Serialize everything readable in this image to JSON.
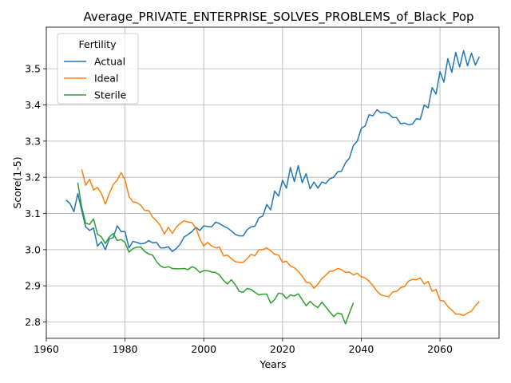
{
  "chart_data": {
    "type": "line",
    "title": "Average_PRIVATE_ENTERPRISE_SOLVES_PROBLEMS_of_Black_Pop",
    "xlabel": "Years",
    "ylabel": "Score(1-5)",
    "xlim": [
      1960,
      2075
    ],
    "ylim": [
      2.755,
      3.615
    ],
    "xticks": [
      1960,
      1980,
      2000,
      2020,
      2040,
      2060
    ],
    "yticks": [
      2.8,
      2.9,
      3.0,
      3.1,
      3.2,
      3.3,
      3.4,
      3.5
    ],
    "grid": true,
    "legend": {
      "title": "Fertility",
      "placement": "top-left"
    },
    "series": [
      {
        "name": "Actual",
        "color": "#1f77b4",
        "points": [
          [
            1965,
            3.137
          ],
          [
            1966,
            3.128
          ],
          [
            1967,
            3.105
          ],
          [
            1968,
            3.155
          ],
          [
            1969,
            3.108
          ],
          [
            1970,
            3.063
          ],
          [
            1971,
            3.053
          ],
          [
            1972,
            3.06
          ],
          [
            1973,
            3.01
          ],
          [
            1974,
            3.022
          ],
          [
            1975,
            3.0
          ],
          [
            1976,
            3.03
          ],
          [
            1977,
            3.033
          ],
          [
            1978,
            3.066
          ],
          [
            1979,
            3.05
          ],
          [
            1980,
            3.05
          ],
          [
            1981,
            3.005
          ],
          [
            1982,
            3.023
          ],
          [
            1983,
            3.02
          ],
          [
            1984,
            3.016
          ],
          [
            1985,
            3.018
          ],
          [
            1986,
            3.025
          ],
          [
            1987,
            3.019
          ],
          [
            1988,
            3.02
          ],
          [
            1989,
            3.005
          ],
          [
            1990,
            3.005
          ],
          [
            1991,
            3.008
          ],
          [
            1992,
            2.995
          ],
          [
            1993,
            3.003
          ],
          [
            1994,
            3.015
          ],
          [
            1995,
            3.035
          ],
          [
            1996,
            3.042
          ],
          [
            1997,
            3.05
          ],
          [
            1998,
            3.062
          ],
          [
            1999,
            3.053
          ],
          [
            2000,
            3.066
          ],
          [
            2001,
            3.064
          ],
          [
            2002,
            3.063
          ],
          [
            2003,
            3.076
          ],
          [
            2004,
            3.072
          ],
          [
            2005,
            3.065
          ],
          [
            2006,
            3.06
          ],
          [
            2007,
            3.052
          ],
          [
            2008,
            3.042
          ],
          [
            2009,
            3.038
          ],
          [
            2010,
            3.038
          ],
          [
            2011,
            3.055
          ],
          [
            2012,
            3.063
          ],
          [
            2013,
            3.065
          ],
          [
            2014,
            3.088
          ],
          [
            2015,
            3.093
          ],
          [
            2016,
            3.125
          ],
          [
            2017,
            3.11
          ],
          [
            2018,
            3.162
          ],
          [
            2019,
            3.148
          ],
          [
            2020,
            3.192
          ],
          [
            2021,
            3.17
          ],
          [
            2022,
            3.227
          ],
          [
            2023,
            3.188
          ],
          [
            2024,
            3.232
          ],
          [
            2025,
            3.185
          ],
          [
            2026,
            3.21
          ],
          [
            2027,
            3.168
          ],
          [
            2028,
            3.187
          ],
          [
            2029,
            3.17
          ],
          [
            2030,
            3.187
          ],
          [
            2031,
            3.183
          ],
          [
            2032,
            3.196
          ],
          [
            2033,
            3.2
          ],
          [
            2034,
            3.215
          ],
          [
            2035,
            3.217
          ],
          [
            2036,
            3.24
          ],
          [
            2037,
            3.253
          ],
          [
            2038,
            3.288
          ],
          [
            2039,
            3.3
          ],
          [
            2040,
            3.335
          ],
          [
            2041,
            3.342
          ],
          [
            2042,
            3.373
          ],
          [
            2043,
            3.37
          ],
          [
            2044,
            3.387
          ],
          [
            2045,
            3.378
          ],
          [
            2046,
            3.38
          ],
          [
            2047,
            3.375
          ],
          [
            2048,
            3.365
          ],
          [
            2049,
            3.365
          ],
          [
            2050,
            3.348
          ],
          [
            2051,
            3.35
          ],
          [
            2052,
            3.345
          ],
          [
            2053,
            3.347
          ],
          [
            2054,
            3.362
          ],
          [
            2055,
            3.36
          ],
          [
            2056,
            3.4
          ],
          [
            2057,
            3.392
          ],
          [
            2058,
            3.448
          ],
          [
            2059,
            3.43
          ],
          [
            2060,
            3.492
          ],
          [
            2061,
            3.463
          ],
          [
            2062,
            3.528
          ],
          [
            2063,
            3.49
          ],
          [
            2064,
            3.545
          ],
          [
            2065,
            3.505
          ],
          [
            2066,
            3.55
          ],
          [
            2067,
            3.508
          ],
          [
            2068,
            3.543
          ],
          [
            2069,
            3.51
          ],
          [
            2070,
            3.533
          ]
        ]
      },
      {
        "name": "Ideal",
        "color": "#ff7f0e",
        "points": [
          [
            1969,
            3.222
          ],
          [
            1970,
            3.178
          ],
          [
            1971,
            3.195
          ],
          [
            1972,
            3.165
          ],
          [
            1973,
            3.172
          ],
          [
            1974,
            3.155
          ],
          [
            1975,
            3.126
          ],
          [
            1976,
            3.155
          ],
          [
            1977,
            3.18
          ],
          [
            1978,
            3.192
          ],
          [
            1979,
            3.213
          ],
          [
            1980,
            3.193
          ],
          [
            1981,
            3.147
          ],
          [
            1982,
            3.132
          ],
          [
            1983,
            3.13
          ],
          [
            1984,
            3.123
          ],
          [
            1985,
            3.108
          ],
          [
            1986,
            3.108
          ],
          [
            1987,
            3.09
          ],
          [
            1988,
            3.08
          ],
          [
            1989,
            3.066
          ],
          [
            1990,
            3.043
          ],
          [
            1991,
            3.062
          ],
          [
            1992,
            3.045
          ],
          [
            1993,
            3.062
          ],
          [
            1994,
            3.072
          ],
          [
            1995,
            3.08
          ],
          [
            1996,
            3.076
          ],
          [
            1997,
            3.075
          ],
          [
            1998,
            3.06
          ],
          [
            1999,
            3.03
          ],
          [
            2000,
            3.01
          ],
          [
            2001,
            3.02
          ],
          [
            2002,
            3.01
          ],
          [
            2003,
            3.005
          ],
          [
            2004,
            3.007
          ],
          [
            2005,
            2.983
          ],
          [
            2006,
            2.985
          ],
          [
            2007,
            2.975
          ],
          [
            2008,
            2.967
          ],
          [
            2009,
            2.965
          ],
          [
            2010,
            2.965
          ],
          [
            2011,
            2.975
          ],
          [
            2012,
            2.987
          ],
          [
            2013,
            2.983
          ],
          [
            2014,
            3.0
          ],
          [
            2015,
            3.0
          ],
          [
            2016,
            3.005
          ],
          [
            2017,
            2.997
          ],
          [
            2018,
            2.987
          ],
          [
            2019,
            2.985
          ],
          [
            2020,
            2.965
          ],
          [
            2021,
            2.968
          ],
          [
            2022,
            2.955
          ],
          [
            2023,
            2.95
          ],
          [
            2024,
            2.94
          ],
          [
            2025,
            2.927
          ],
          [
            2026,
            2.91
          ],
          [
            2027,
            2.908
          ],
          [
            2028,
            2.893
          ],
          [
            2029,
            2.905
          ],
          [
            2030,
            2.92
          ],
          [
            2031,
            2.93
          ],
          [
            2032,
            2.94
          ],
          [
            2033,
            2.942
          ],
          [
            2034,
            2.948
          ],
          [
            2035,
            2.945
          ],
          [
            2036,
            2.937
          ],
          [
            2037,
            2.938
          ],
          [
            2038,
            2.93
          ],
          [
            2039,
            2.935
          ],
          [
            2040,
            2.925
          ],
          [
            2041,
            2.922
          ],
          [
            2042,
            2.913
          ],
          [
            2043,
            2.9
          ],
          [
            2044,
            2.885
          ],
          [
            2045,
            2.875
          ],
          [
            2046,
            2.872
          ],
          [
            2047,
            2.87
          ],
          [
            2048,
            2.883
          ],
          [
            2049,
            2.885
          ],
          [
            2050,
            2.895
          ],
          [
            2051,
            2.898
          ],
          [
            2052,
            2.913
          ],
          [
            2053,
            2.918
          ],
          [
            2054,
            2.917
          ],
          [
            2055,
            2.922
          ],
          [
            2056,
            2.905
          ],
          [
            2057,
            2.912
          ],
          [
            2058,
            2.885
          ],
          [
            2059,
            2.89
          ],
          [
            2060,
            2.86
          ],
          [
            2061,
            2.858
          ],
          [
            2062,
            2.843
          ],
          [
            2063,
            2.833
          ],
          [
            2064,
            2.822
          ],
          [
            2065,
            2.822
          ],
          [
            2066,
            2.818
          ],
          [
            2067,
            2.825
          ],
          [
            2068,
            2.83
          ],
          [
            2069,
            2.845
          ],
          [
            2070,
            2.857
          ]
        ]
      },
      {
        "name": "Sterile",
        "color": "#2ca02c",
        "points": [
          [
            1968,
            3.185
          ],
          [
            1969,
            3.117
          ],
          [
            1970,
            3.073
          ],
          [
            1971,
            3.07
          ],
          [
            1972,
            3.085
          ],
          [
            1973,
            3.043
          ],
          [
            1974,
            3.035
          ],
          [
            1975,
            3.017
          ],
          [
            1976,
            3.035
          ],
          [
            1977,
            3.045
          ],
          [
            1978,
            3.025
          ],
          [
            1979,
            3.028
          ],
          [
            1980,
            3.02
          ],
          [
            1981,
            2.993
          ],
          [
            1982,
            3.003
          ],
          [
            1983,
            3.007
          ],
          [
            1984,
            3.007
          ],
          [
            1985,
            2.995
          ],
          [
            1986,
            2.988
          ],
          [
            1987,
            2.985
          ],
          [
            1988,
            2.967
          ],
          [
            1989,
            2.955
          ],
          [
            1990,
            2.95
          ],
          [
            1991,
            2.953
          ],
          [
            1992,
            2.948
          ],
          [
            1993,
            2.947
          ],
          [
            1994,
            2.947
          ],
          [
            1995,
            2.948
          ],
          [
            1996,
            2.945
          ],
          [
            1997,
            2.953
          ],
          [
            1998,
            2.948
          ],
          [
            1999,
            2.937
          ],
          [
            2000,
            2.942
          ],
          [
            2001,
            2.942
          ],
          [
            2002,
            2.938
          ],
          [
            2003,
            2.937
          ],
          [
            2004,
            2.93
          ],
          [
            2005,
            2.915
          ],
          [
            2006,
            2.905
          ],
          [
            2007,
            2.917
          ],
          [
            2008,
            2.903
          ],
          [
            2009,
            2.885
          ],
          [
            2010,
            2.882
          ],
          [
            2011,
            2.893
          ],
          [
            2012,
            2.89
          ],
          [
            2013,
            2.882
          ],
          [
            2014,
            2.875
          ],
          [
            2015,
            2.877
          ],
          [
            2016,
            2.877
          ],
          [
            2017,
            2.852
          ],
          [
            2018,
            2.862
          ],
          [
            2019,
            2.88
          ],
          [
            2020,
            2.878
          ],
          [
            2021,
            2.865
          ],
          [
            2022,
            2.875
          ],
          [
            2023,
            2.872
          ],
          [
            2024,
            2.878
          ],
          [
            2025,
            2.862
          ],
          [
            2026,
            2.845
          ],
          [
            2027,
            2.857
          ],
          [
            2028,
            2.847
          ],
          [
            2029,
            2.84
          ],
          [
            2030,
            2.855
          ],
          [
            2031,
            2.842
          ],
          [
            2032,
            2.828
          ],
          [
            2033,
            2.815
          ],
          [
            2034,
            2.825
          ],
          [
            2035,
            2.822
          ],
          [
            2036,
            2.795
          ],
          [
            2037,
            2.825
          ],
          [
            2038,
            2.853
          ]
        ]
      }
    ]
  }
}
